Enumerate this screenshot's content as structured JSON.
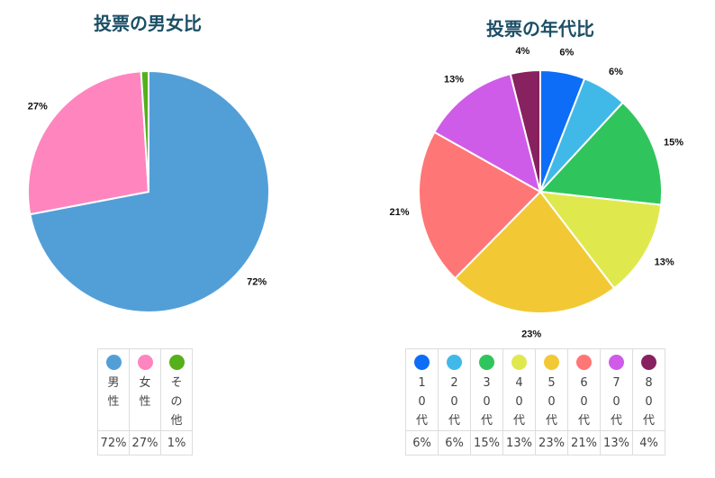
{
  "charts": {
    "gender": {
      "title": "投票の男女比",
      "legend": [
        {
          "label": "男性",
          "value": "72%"
        },
        {
          "label": "女性",
          "value": "27%"
        },
        {
          "label": "その他",
          "value": "1%"
        }
      ]
    },
    "age": {
      "title": "投票の年代比",
      "legend": [
        {
          "label": "10代",
          "value": "6%"
        },
        {
          "label": "20代",
          "value": "6%"
        },
        {
          "label": "30代",
          "value": "15%"
        },
        {
          "label": "40代",
          "value": "13%"
        },
        {
          "label": "50代",
          "value": "23%"
        },
        {
          "label": "60代",
          "value": "21%"
        },
        {
          "label": "70代",
          "value": "13%"
        },
        {
          "label": "80代",
          "value": "4%"
        }
      ]
    }
  },
  "chart_data": [
    {
      "type": "pie",
      "title": "投票の男女比",
      "categories": [
        "男性",
        "女性",
        "その他"
      ],
      "values": [
        72,
        27,
        1
      ],
      "labels": [
        "72%",
        "27%",
        ""
      ],
      "colors": [
        "#529fd8",
        "#ff85bf",
        "#55b01b"
      ],
      "legend_position": "bottom"
    },
    {
      "type": "pie",
      "title": "投票の年代比",
      "categories": [
        "10代",
        "20代",
        "30代",
        "40代",
        "50代",
        "60代",
        "70代",
        "80代"
      ],
      "values": [
        6,
        6,
        15,
        13,
        23,
        21,
        13,
        4
      ],
      "labels": [
        "6%",
        "6%",
        "15%",
        "13%",
        "23%",
        "21%",
        "13%",
        "4%"
      ],
      "colors": [
        "#0d6df6",
        "#41b9e8",
        "#2fc55c",
        "#dfe94e",
        "#f2c934",
        "#ff7676",
        "#cf5ce8",
        "#88215f"
      ],
      "legend_position": "bottom"
    }
  ]
}
